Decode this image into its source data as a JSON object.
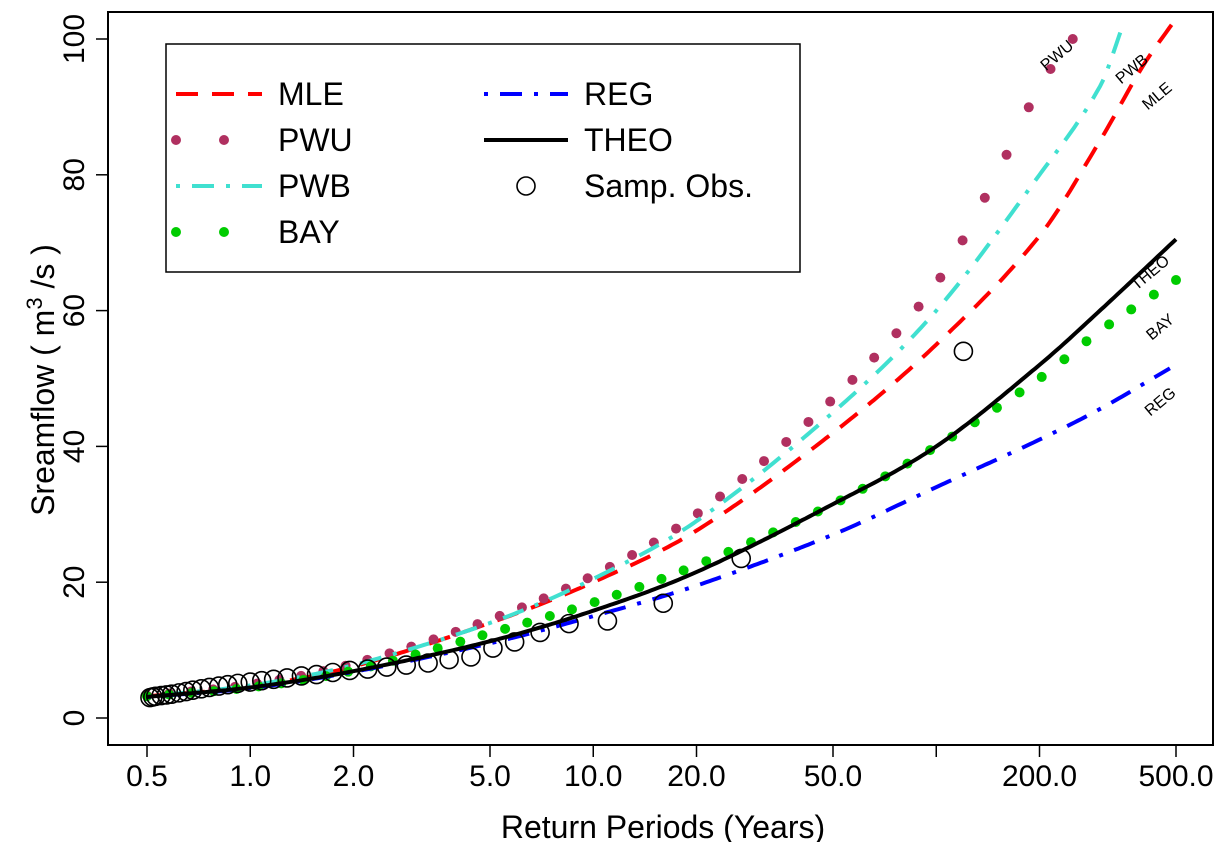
{
  "chart_data": {
    "type": "line",
    "xlabel": "Return Periods (Years)",
    "ylabel_main": "Sreamflow ( m",
    "ylabel_sup": "3",
    "ylabel_tail": " /s )",
    "x_scale": "log",
    "xlim": [
      0.5,
      500
    ],
    "ylim": [
      0,
      100
    ],
    "grid": false,
    "legend_position": "top-left",
    "x_ticks": [
      {
        "value": 0.5,
        "label": "0.5"
      },
      {
        "value": 1,
        "label": "1.0"
      },
      {
        "value": 2,
        "label": "2.0"
      },
      {
        "value": 5,
        "label": "5.0"
      },
      {
        "value": 10,
        "label": "10.0"
      },
      {
        "value": 20,
        "label": "20.0"
      },
      {
        "value": 50,
        "label": "50.0"
      },
      {
        "value": 100,
        "label": ""
      },
      {
        "value": 200,
        "label": "200.0"
      },
      {
        "value": 500,
        "label": "500.0"
      }
    ],
    "y_ticks": [
      {
        "value": 0,
        "label": "0"
      },
      {
        "value": 20,
        "label": "20"
      },
      {
        "value": 40,
        "label": "40"
      },
      {
        "value": 60,
        "label": "60"
      },
      {
        "value": 80,
        "label": "80"
      },
      {
        "value": 100,
        "label": "100"
      }
    ],
    "series": [
      {
        "name": "MLE",
        "style": "dashed",
        "color": "#ff0000",
        "x": [
          0.5,
          1,
          2,
          5,
          10,
          20,
          50,
          100,
          200,
          300,
          400,
          500
        ],
        "y": [
          3.2,
          4.6,
          7.6,
          14.0,
          20.0,
          27.6,
          42.0,
          55.0,
          71.0,
          85.0,
          96.0,
          103.0
        ]
      },
      {
        "name": "PWU",
        "style": "dotted",
        "color": "#b03060",
        "x": [
          0.5,
          1,
          2,
          5,
          10,
          20,
          50,
          100,
          150,
          200,
          250
        ],
        "y": [
          3.3,
          4.9,
          8.0,
          14.5,
          21.0,
          30.0,
          47.0,
          64.0,
          80.0,
          93.0,
          100.0
        ]
      },
      {
        "name": "PWB",
        "style": "dotdash",
        "color": "#40e0d0",
        "x": [
          0.5,
          1,
          2,
          5,
          10,
          20,
          50,
          100,
          200,
          300,
          350
        ],
        "y": [
          3.2,
          4.8,
          7.8,
          14.0,
          20.5,
          29.0,
          45.0,
          60.0,
          80.0,
          93.0,
          102.0
        ]
      },
      {
        "name": "BAY",
        "style": "dotted",
        "color": "#00cc00",
        "x": [
          0.5,
          1,
          2,
          5,
          10,
          20,
          50,
          100,
          200,
          300,
          500
        ],
        "y": [
          3.2,
          4.5,
          7.0,
          12.5,
          17.0,
          22.5,
          31.5,
          40.0,
          50.0,
          57.0,
          64.5
        ]
      },
      {
        "name": "REG",
        "style": "dotdash",
        "color": "#0000ff",
        "x": [
          0.5,
          1,
          2,
          5,
          10,
          20,
          50,
          100,
          200,
          300,
          480
        ],
        "y": [
          3.1,
          4.4,
          6.8,
          11.0,
          15.0,
          19.5,
          27.0,
          34.0,
          41.0,
          45.5,
          51.5
        ]
      },
      {
        "name": "THEO",
        "style": "solid",
        "color": "#000000",
        "x": [
          0.5,
          1,
          2,
          5,
          10,
          20,
          50,
          100,
          200,
          300,
          500
        ],
        "y": [
          3.1,
          4.5,
          6.9,
          11.3,
          15.8,
          21.5,
          31.5,
          40.0,
          52.0,
          60.0,
          70.5
        ]
      },
      {
        "name": "Samp. Obs.",
        "style": "points",
        "color": "#000000",
        "x": [
          0.51,
          0.52,
          0.53,
          0.55,
          0.57,
          0.59,
          0.62,
          0.65,
          0.68,
          0.72,
          0.76,
          0.81,
          0.86,
          0.92,
          1.0,
          1.08,
          1.17,
          1.28,
          1.41,
          1.56,
          1.74,
          1.95,
          2.2,
          2.5,
          2.85,
          3.3,
          3.8,
          4.4,
          5.1,
          5.9,
          7.0,
          8.5,
          11.0,
          16.0,
          27.0,
          120.0
        ],
        "y": [
          3.0,
          3.1,
          3.2,
          3.3,
          3.4,
          3.5,
          3.7,
          3.9,
          4.1,
          4.3,
          4.5,
          4.7,
          4.9,
          5.1,
          5.3,
          5.5,
          5.7,
          5.9,
          6.2,
          6.4,
          6.7,
          7.0,
          7.2,
          7.5,
          7.8,
          8.1,
          8.6,
          9.0,
          10.3,
          11.2,
          12.6,
          13.9,
          14.3,
          16.9,
          23.5,
          54.0
        ]
      }
    ],
    "curve_labels": [
      {
        "text": "PWU",
        "x": 230,
        "y": 97
      },
      {
        "text": "PWB",
        "x": 380,
        "y": 95
      },
      {
        "text": "MLE",
        "x": 450,
        "y": 91
      },
      {
        "text": "THEO",
        "x": 430,
        "y": 65
      },
      {
        "text": "BAY",
        "x": 460,
        "y": 57
      },
      {
        "text": "REG",
        "x": 460,
        "y": 46
      }
    ],
    "legend": {
      "items": [
        {
          "label": "MLE",
          "series": 0
        },
        {
          "label": "PWU",
          "series": 1
        },
        {
          "label": "PWB",
          "series": 2
        },
        {
          "label": "BAY",
          "series": 3
        },
        {
          "label": "REG",
          "series": 4
        },
        {
          "label": "THEO",
          "series": 5
        },
        {
          "label": "Samp. Obs.",
          "series": 6
        }
      ]
    }
  }
}
